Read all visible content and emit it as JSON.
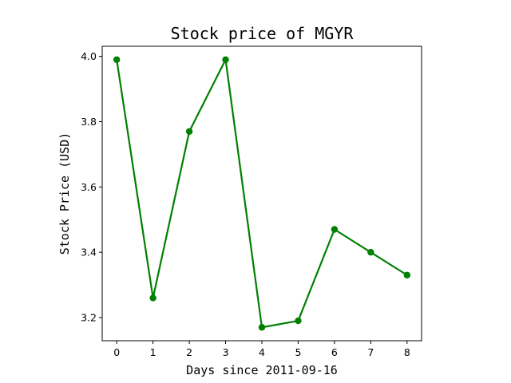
{
  "chart_data": {
    "type": "line",
    "title": "Stock price of MGYR",
    "xlabel": "Days since 2011-09-16",
    "ylabel": "Stock Price (USD)",
    "x": [
      0,
      1,
      2,
      3,
      4,
      5,
      6,
      7,
      8
    ],
    "series": [
      {
        "values": [
          3.99,
          3.26,
          3.77,
          3.99,
          3.17,
          3.19,
          3.47,
          3.4,
          3.33
        ],
        "color": "#008000",
        "marker": "circle"
      }
    ],
    "xticks": [
      "0",
      "1",
      "2",
      "3",
      "4",
      "5",
      "6",
      "7",
      "8"
    ],
    "yticks": [
      "3.2",
      "3.4",
      "3.6",
      "3.8",
      "4.0"
    ],
    "xlim": [
      -0.4,
      8.4
    ],
    "ylim": [
      3.129,
      4.031
    ],
    "grid": false,
    "legend": "none"
  }
}
